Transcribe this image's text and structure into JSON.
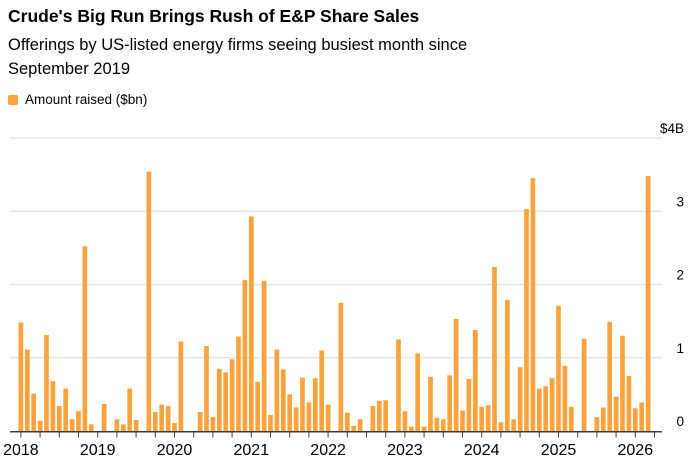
{
  "header": {
    "title": "Crude's Big Run Brings Rush of E&P Share Sales",
    "subtitle": "Offerings by US-listed energy firms seeing busiest month since September 2019",
    "subtitle_lines": [
      "Offerings by US-listed energy firms seeing busiest month since",
      "September 2019"
    ]
  },
  "legend": {
    "label": "Amount raised ($bn)"
  },
  "y_axis": {
    "top_label": "$4B",
    "tick_values": [
      0,
      1,
      2,
      3
    ],
    "max": 4
  },
  "x_axis": {
    "year_labels": [
      "2018",
      "2019",
      "2020",
      "2021",
      "2022",
      "2023",
      "2024",
      "2025",
      "2026"
    ],
    "minor_tick_interval_months": 3
  },
  "colors": {
    "bar": "#FAA23C",
    "gridline": "#E3E3E3",
    "axis": "#3C3C3C",
    "text": "#000000",
    "background": "#FFFFFF"
  },
  "chart_data": {
    "type": "bar",
    "title": "Crude's Big Run Brings Rush of E&P Share Sales",
    "series_name": "Amount raised ($bn)",
    "unit": "USD billions",
    "ylim": [
      0,
      4
    ],
    "grid": "horizontal",
    "legend_position": "top-left",
    "months": [
      "2018-01",
      "2018-02",
      "2018-03",
      "2018-04",
      "2018-05",
      "2018-06",
      "2018-07",
      "2018-08",
      "2018-09",
      "2018-10",
      "2018-11",
      "2018-12",
      "2019-01",
      "2019-02",
      "2019-03",
      "2019-04",
      "2019-05",
      "2019-06",
      "2019-07",
      "2019-08",
      "2019-09",
      "2019-10",
      "2019-11",
      "2019-12",
      "2020-01",
      "2020-02",
      "2020-03",
      "2020-04",
      "2020-05",
      "2020-06",
      "2020-07",
      "2020-08",
      "2020-09",
      "2020-10",
      "2020-11",
      "2020-12",
      "2021-01",
      "2021-02",
      "2021-03",
      "2021-04",
      "2021-05",
      "2021-06",
      "2021-07",
      "2021-08",
      "2021-09",
      "2021-10",
      "2021-11",
      "2021-12",
      "2022-01",
      "2022-02",
      "2022-03",
      "2022-04",
      "2022-05",
      "2022-06",
      "2022-07",
      "2022-08",
      "2022-09",
      "2022-10",
      "2022-11",
      "2022-12",
      "2023-01",
      "2023-02",
      "2023-03",
      "2023-04",
      "2023-05",
      "2023-06",
      "2023-07",
      "2023-08",
      "2023-09",
      "2023-10",
      "2023-11",
      "2023-12",
      "2024-01",
      "2024-02",
      "2024-03",
      "2024-04",
      "2024-05",
      "2024-06",
      "2024-07",
      "2024-08",
      "2024-09",
      "2024-10",
      "2024-11",
      "2024-12",
      "2025-01",
      "2025-02",
      "2025-03",
      "2025-04",
      "2025-05",
      "2025-06",
      "2025-07",
      "2025-08",
      "2025-09",
      "2025-10",
      "2025-11",
      "2025-12",
      "2026-01",
      "2026-02",
      "2026-03"
    ],
    "values": [
      1.48,
      1.11,
      0.51,
      0.14,
      1.31,
      0.68,
      0.34,
      0.58,
      0.16,
      0.27,
      2.52,
      0.09,
      0,
      0.37,
      0,
      0.16,
      0.09,
      0.58,
      0.15,
      0,
      3.54,
      0.26,
      0.36,
      0.34,
      0.11,
      1.22,
      0,
      0,
      0.26,
      1.16,
      0.19,
      0.85,
      0.8,
      0.98,
      1.29,
      2.06,
      2.93,
      0.67,
      2.05,
      0.22,
      1.11,
      0.84,
      0.5,
      0.32,
      0.73,
      0.39,
      0.72,
      1.1,
      0.36,
      0,
      1.75,
      0.25,
      0.07,
      0.16,
      0,
      0.34,
      0.41,
      0.42,
      0,
      1.25,
      0.27,
      0.06,
      1.06,
      0.06,
      0.74,
      0.18,
      0.16,
      0.76,
      1.53,
      0.28,
      0.71,
      1.38,
      0.33,
      0.35,
      2.24,
      0.12,
      1.79,
      0.16,
      0.87,
      3.03,
      3.45,
      0.58,
      0.61,
      0.72,
      1.71,
      0.89,
      0.33,
      0,
      1.26,
      0,
      0.19,
      0.32,
      1.49,
      0.47,
      1.3,
      0.75,
      0.31,
      0.39,
      3.48
    ]
  }
}
